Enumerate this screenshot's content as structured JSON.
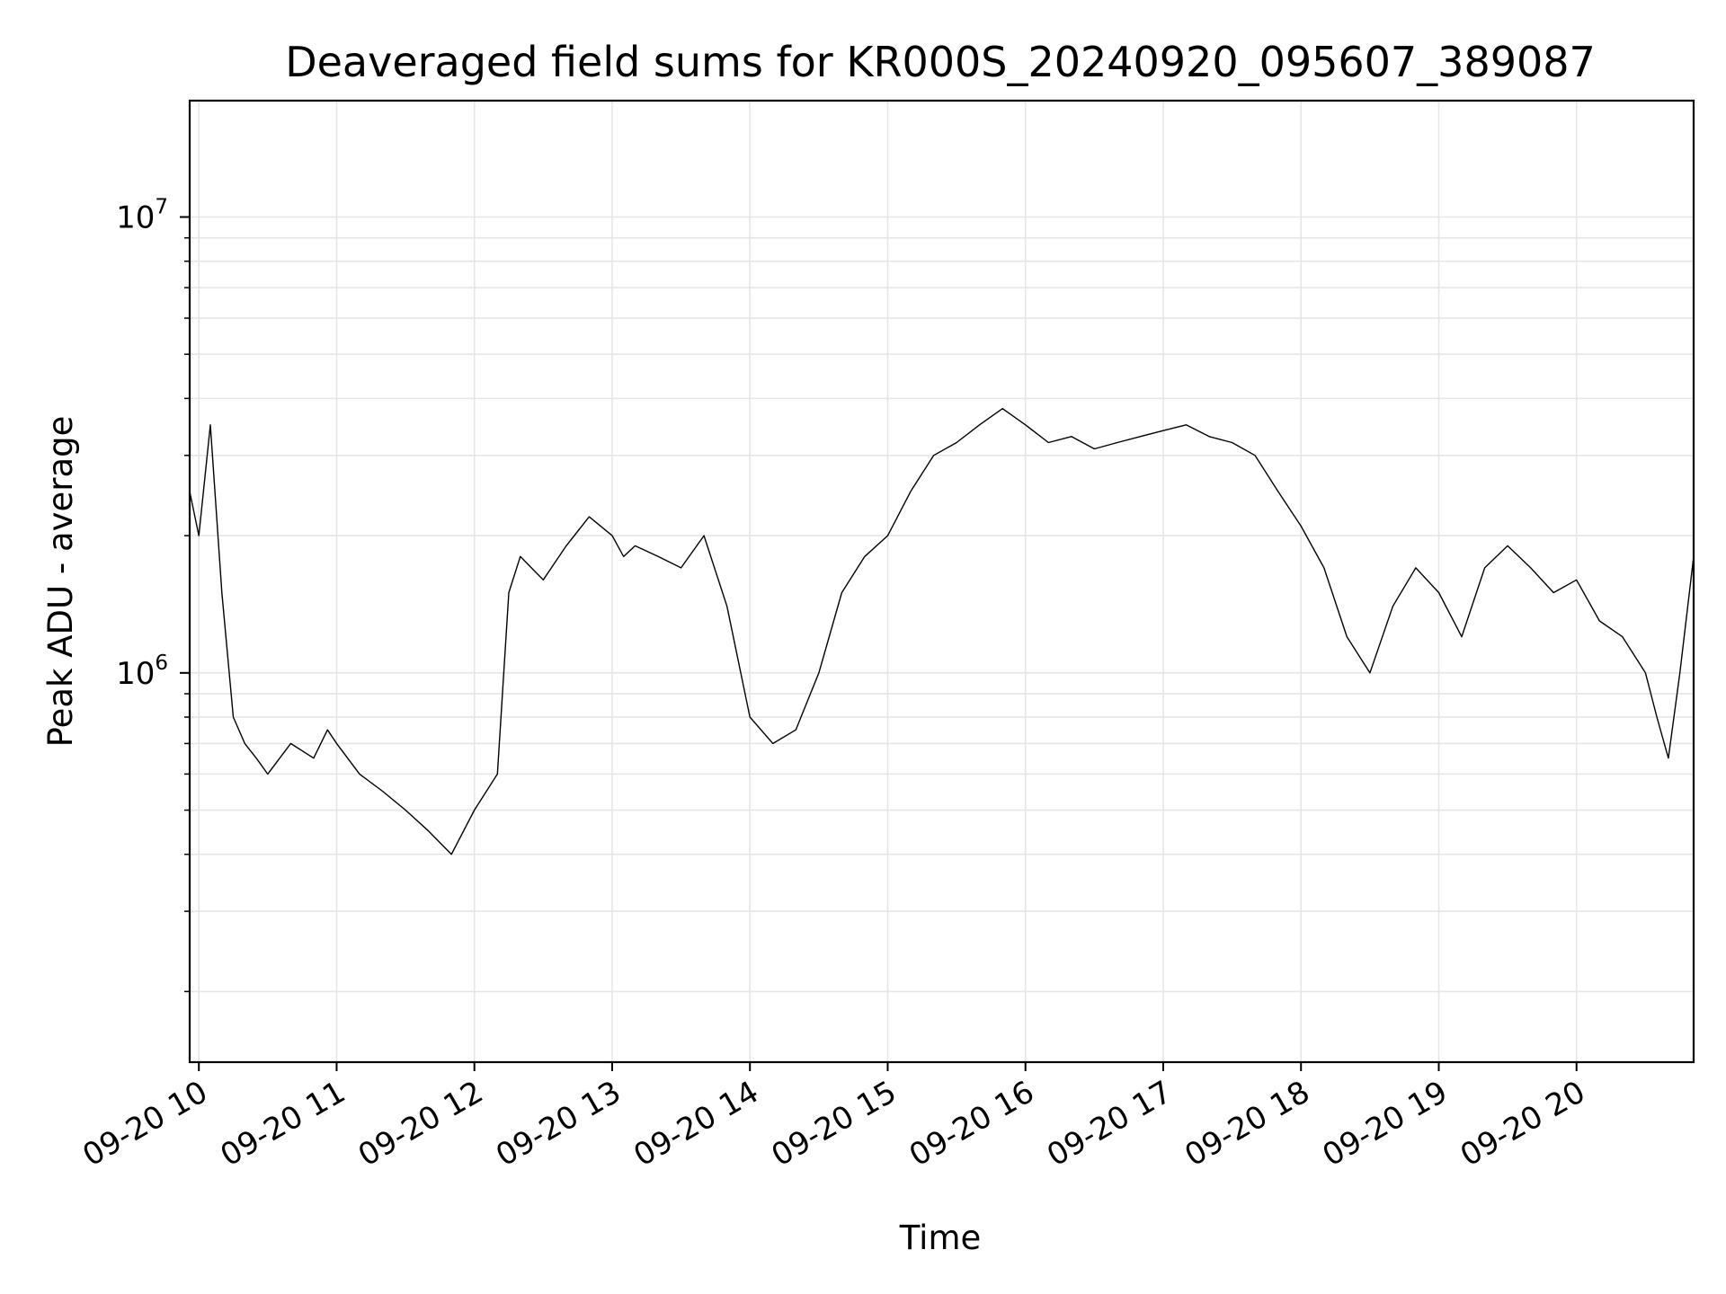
{
  "chart_data": {
    "type": "line",
    "title": "Deaveraged field sums for KR000S_20240920_095607_389087",
    "xlabel": "Time",
    "ylabel": "Peak ADU - average",
    "yscale": "log",
    "ylim": [
      140000,
      18000000
    ],
    "xlim": [
      "2024-09-20 09:56",
      "2024-09-20 20:51"
    ],
    "x_ticks": [
      "09-20 10",
      "09-20 11",
      "09-20 12",
      "09-20 13",
      "09-20 14",
      "09-20 15",
      "09-20 16",
      "09-20 17",
      "09-20 18",
      "09-20 19",
      "09-20 20"
    ],
    "y_ticks": [
      {
        "base": "10",
        "exp": "6",
        "value": 1000000
      },
      {
        "base": "10",
        "exp": "7",
        "value": 10000000
      }
    ],
    "grid": true,
    "line_color": "#000000",
    "series": [
      {
        "x": [
          "2024-09-20 09:56",
          "2024-09-20 10:00",
          "2024-09-20 10:05",
          "2024-09-20 10:10",
          "2024-09-20 10:15",
          "2024-09-20 10:20",
          "2024-09-20 10:25",
          "2024-09-20 10:30",
          "2024-09-20 10:40",
          "2024-09-20 10:50",
          "2024-09-20 10:56",
          "2024-09-20 11:00",
          "2024-09-20 11:10",
          "2024-09-20 11:20",
          "2024-09-20 11:30",
          "2024-09-20 11:40",
          "2024-09-20 11:50",
          "2024-09-20 12:00",
          "2024-09-20 12:10",
          "2024-09-20 12:15",
          "2024-09-20 12:20",
          "2024-09-20 12:30",
          "2024-09-20 12:40",
          "2024-09-20 12:50",
          "2024-09-20 13:00",
          "2024-09-20 13:05",
          "2024-09-20 13:10",
          "2024-09-20 13:20",
          "2024-09-20 13:30",
          "2024-09-20 13:40",
          "2024-09-20 13:50",
          "2024-09-20 14:00",
          "2024-09-20 14:10",
          "2024-09-20 14:20",
          "2024-09-20 14:30",
          "2024-09-20 14:40",
          "2024-09-20 14:50",
          "2024-09-20 15:00",
          "2024-09-20 15:10",
          "2024-09-20 15:20",
          "2024-09-20 15:30",
          "2024-09-20 15:40",
          "2024-09-20 15:50",
          "2024-09-20 16:00",
          "2024-09-20 16:10",
          "2024-09-20 16:20",
          "2024-09-20 16:30",
          "2024-09-20 16:40",
          "2024-09-20 16:50",
          "2024-09-20 17:00",
          "2024-09-20 17:10",
          "2024-09-20 17:20",
          "2024-09-20 17:30",
          "2024-09-20 17:40",
          "2024-09-20 17:50",
          "2024-09-20 18:00",
          "2024-09-20 18:10",
          "2024-09-20 18:20",
          "2024-09-20 18:30",
          "2024-09-20 18:40",
          "2024-09-20 18:50",
          "2024-09-20 19:00",
          "2024-09-20 19:10",
          "2024-09-20 19:20",
          "2024-09-20 19:30",
          "2024-09-20 19:40",
          "2024-09-20 19:50",
          "2024-09-20 20:00",
          "2024-09-20 20:10",
          "2024-09-20 20:20",
          "2024-09-20 20:30",
          "2024-09-20 20:35",
          "2024-09-20 20:40",
          "2024-09-20 20:45",
          "2024-09-20 20:51"
        ],
        "values": [
          2500000,
          2000000,
          3500000,
          1500000,
          800000,
          700000,
          650000,
          600000,
          700000,
          650000,
          750000,
          700000,
          600000,
          550000,
          500000,
          450000,
          400000,
          500000,
          600000,
          1500000,
          1800000,
          1600000,
          1900000,
          2200000,
          2000000,
          1800000,
          1900000,
          1800000,
          1700000,
          2000000,
          1400000,
          800000,
          700000,
          750000,
          1000000,
          1500000,
          1800000,
          2000000,
          2500000,
          3000000,
          3200000,
          3500000,
          3800000,
          3500000,
          3200000,
          3300000,
          3100000,
          3200000,
          3300000,
          3400000,
          3500000,
          3300000,
          3200000,
          3000000,
          2500000,
          2100000,
          1700000,
          1200000,
          1000000,
          1400000,
          1700000,
          1500000,
          1200000,
          1700000,
          1900000,
          1700000,
          1500000,
          1600000,
          1300000,
          1200000,
          1000000,
          800000,
          650000,
          1000000,
          1800000
        ]
      }
    ]
  }
}
